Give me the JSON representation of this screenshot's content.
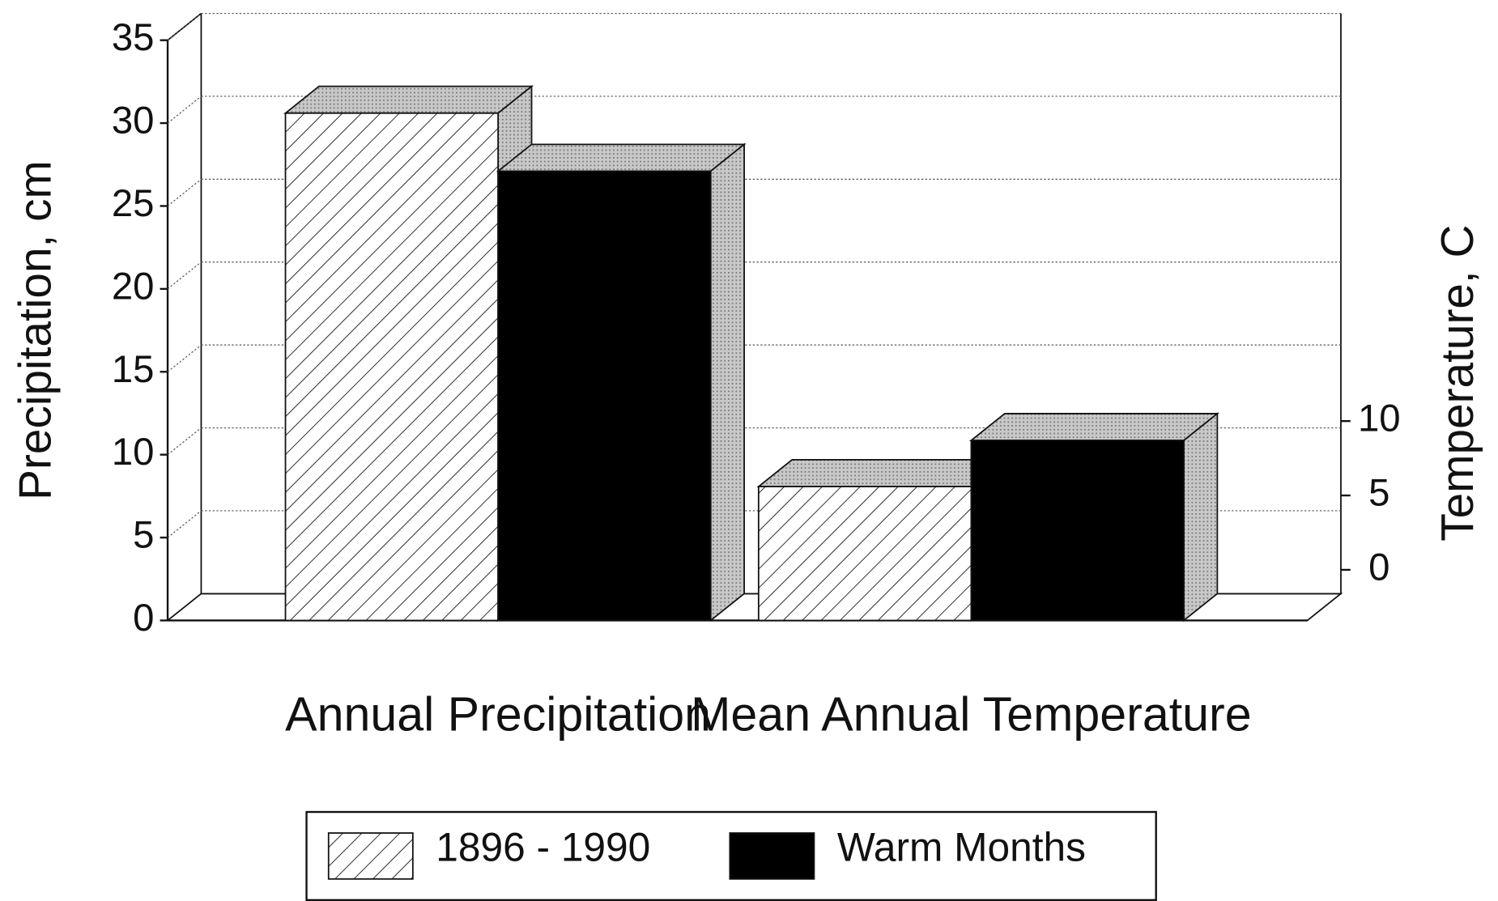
{
  "chart_data": {
    "type": "bar3d",
    "categories": [
      "Annual Precipitation",
      "Mean Annual Temperature"
    ],
    "category_axes": [
      "y",
      "y2"
    ],
    "ylabel": "Precipitation, cm",
    "y2label": "Temperature, C",
    "series": [
      {
        "name": "1896 - 1990",
        "color": "hatch",
        "values": [
          30.6,
          7.4
        ]
      },
      {
        "name": "Warm Months",
        "color": "#000000",
        "values": [
          27.1,
          10.5
        ]
      }
    ],
    "ylim": [
      0,
      35
    ],
    "yticks": [
      0,
      5,
      10,
      15,
      20,
      25,
      30,
      35
    ],
    "y2lim": [
      -1.6,
      37.4
    ],
    "y2ticks": [
      0,
      5,
      10
    ],
    "grid": true,
    "legend": "bottom"
  }
}
